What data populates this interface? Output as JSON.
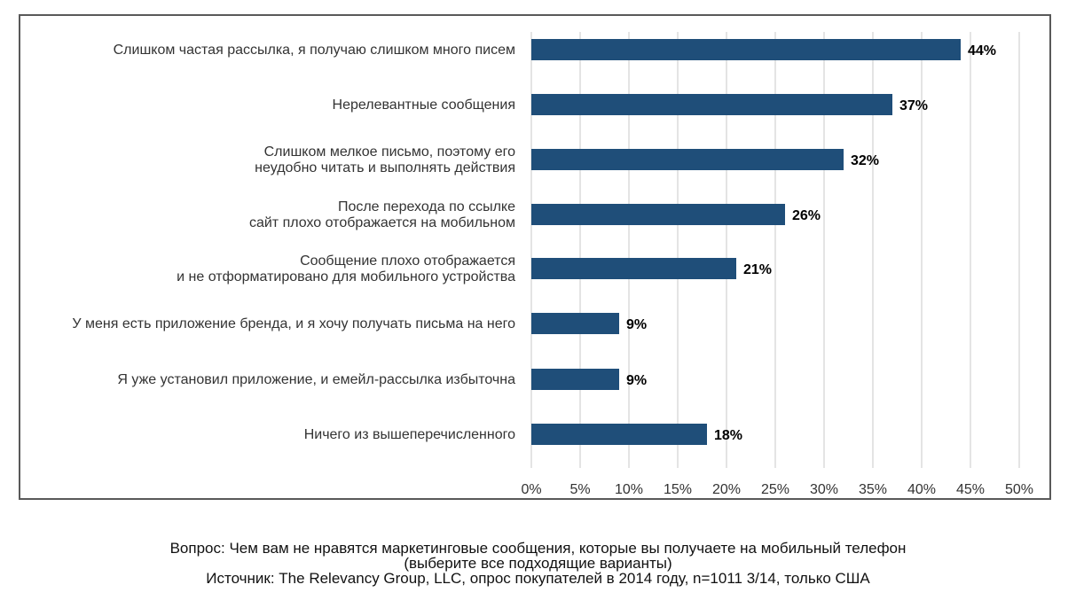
{
  "chart_data": {
    "type": "bar",
    "orientation": "horizontal",
    "categories": [
      [
        "Слишком частая рассылка, я получаю слишком много писем"
      ],
      [
        "Нерелевантные сообщения"
      ],
      [
        "Слишком мелкое письмо, поэтому его",
        "неудобно читать и выполнять действия"
      ],
      [
        "После перехода по ссылке",
        "сайт плохо отображается на мобильном"
      ],
      [
        "Сообщение плохо отображается",
        "и не отформатировано для мобильного устройства"
      ],
      [
        "У меня есть приложение бренда, и я хочу получать письма на него"
      ],
      [
        "Я уже установил приложение, и емейл-рассылка избыточна"
      ],
      [
        "Ничего из вышеперечисленного"
      ]
    ],
    "values": [
      44,
      37,
      32,
      26,
      21,
      9,
      9,
      18
    ],
    "value_labels": [
      "44%",
      "37%",
      "32%",
      "26%",
      "21%",
      "9%",
      "9%",
      "18%"
    ],
    "xlim": [
      0,
      50
    ],
    "xticks": [
      0,
      5,
      10,
      15,
      20,
      25,
      30,
      35,
      40,
      45,
      50
    ],
    "xtick_labels": [
      "0%",
      "5%",
      "10%",
      "15%",
      "20%",
      "25%",
      "30%",
      "35%",
      "40%",
      "45%",
      "50%"
    ],
    "grid": "vertical",
    "bar_color": "#1f4e79",
    "title": "",
    "xlabel": "",
    "ylabel": ""
  },
  "caption": {
    "line1": "Вопрос: Чем вам не нравятся маркетинговые сообщения, которые вы получаете на мобильный телефон",
    "line2": "(выберите все подходящие варианты)",
    "line3": "Источник: The Relevancy Group, LLC, опрос покупателей в 2014 году, n=1011 3/14, только США"
  }
}
